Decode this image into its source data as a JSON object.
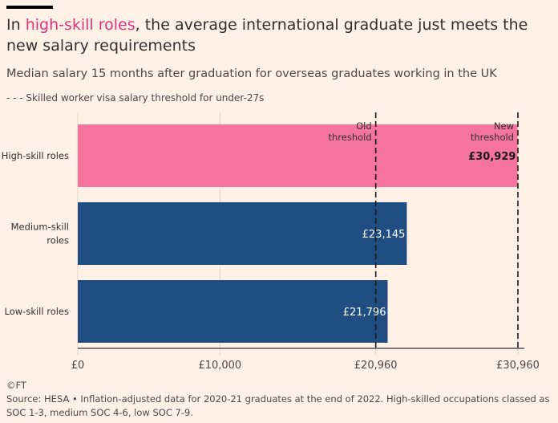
{
  "header": {
    "title_prefix": "In ",
    "title_highlight": "high-skill roles",
    "title_suffix": ", the average international graduate just meets the new salary requirements",
    "subtitle": "Median salary 15 months after graduation for overseas graduates working in the UK",
    "legend_text": "- - - Skilled worker visa salary threshold for under-27s"
  },
  "footer": {
    "copyright": "©FT",
    "source": "Source: HESA • Inflation-adjusted data for 2020-21 graduates at the end of 2022. High-skilled occupations classed as SOC 1-3, medium SOC 4-6, low SOC 7-9."
  },
  "colors": {
    "background": "#fff1e5",
    "high_skill_bar": "#f5739f",
    "other_bars": "#204e82",
    "highlight_text": "#e3337a"
  },
  "chart_data": {
    "type": "bar",
    "orientation": "horizontal",
    "categories": [
      "High-skill roles",
      "Medium-skill roles",
      "Low-skill roles"
    ],
    "category_display_lines": [
      [
        "High-skill roles"
      ],
      [
        "Medium-skill",
        "roles"
      ],
      [
        "Low-skill roles"
      ]
    ],
    "values": [
      30929,
      23145,
      21796
    ],
    "value_labels": [
      "£30,929",
      "£23,145",
      "£21,796"
    ],
    "xlim": [
      0,
      30960
    ],
    "x_ticks": [
      0,
      10000,
      20960,
      30960
    ],
    "x_tick_labels": [
      "£0",
      "£10,000",
      "£20,960",
      "£30,960"
    ],
    "reference_lines": [
      {
        "value": 20960,
        "label_lines": [
          "Old",
          "threshold"
        ]
      },
      {
        "value": 30960,
        "label_lines": [
          "New",
          "threshold"
        ]
      }
    ],
    "grid": "vertical"
  }
}
